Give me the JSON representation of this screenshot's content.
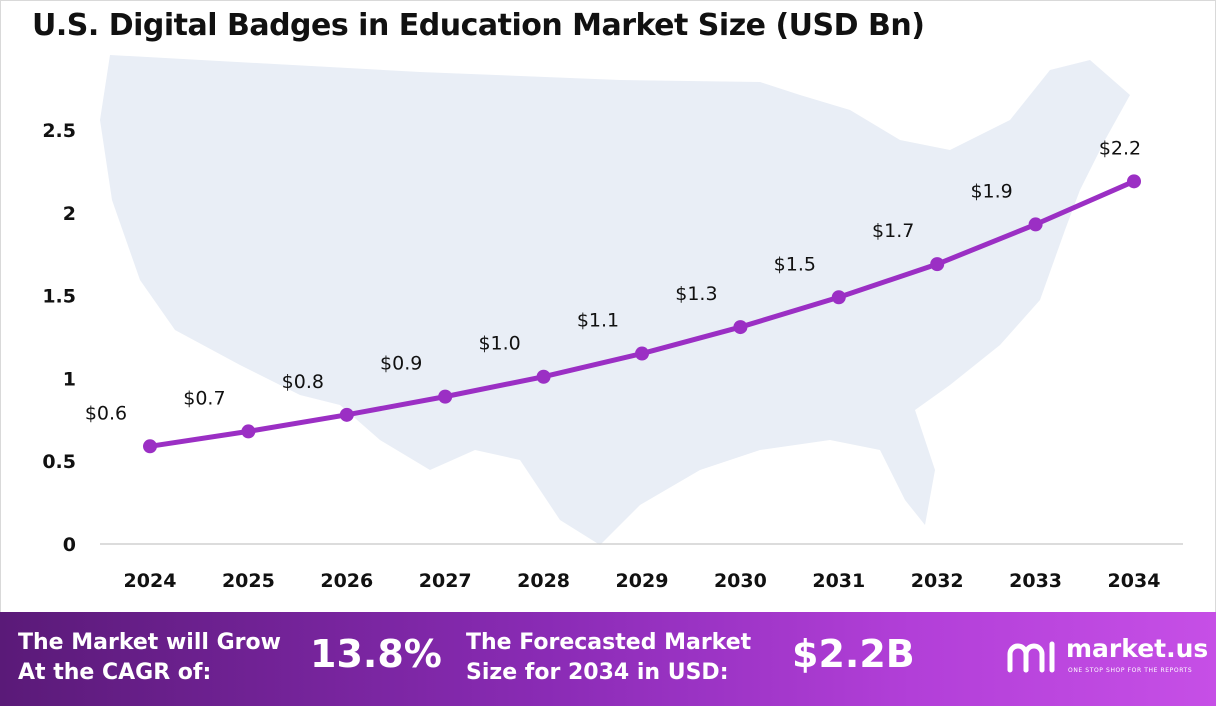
{
  "title": "U.S. Digital Badges in Education Market Size (USD Bn)",
  "chart_data": {
    "type": "line",
    "title": "U.S. Digital Badges in Education Market Size (USD Bn)",
    "categories": [
      "2024",
      "2025",
      "2026",
      "2027",
      "2028",
      "2029",
      "2030",
      "2031",
      "2032",
      "2033",
      "2034"
    ],
    "values": [
      0.59,
      0.68,
      0.78,
      0.89,
      1.01,
      1.15,
      1.31,
      1.49,
      1.69,
      1.93,
      2.19
    ],
    "data_labels": [
      "$0.6",
      "$0.7",
      "$0.8",
      "$0.9",
      "$1.0",
      "$1.1",
      "$1.3",
      "$1.5",
      "$1.7",
      "$1.9",
      "$2.2"
    ],
    "y_ticks": [
      0,
      0.5,
      1,
      1.5,
      2,
      2.5
    ],
    "y_tick_labels": [
      "0",
      "0.5",
      "1",
      "1.5",
      "2",
      "2.5"
    ],
    "ylim": [
      0,
      2.75
    ],
    "grid": false,
    "series_color": "#9b2fc4"
  },
  "footer": {
    "cagr_line1": "The Market will Grow",
    "cagr_line2": "At the CAGR of:",
    "cagr_value": "13.8%",
    "forecast_line1": "The Forecasted Market",
    "forecast_line2": "Size for 2034 in USD:",
    "forecast_value": "$2.2B",
    "logo_name": "market.us",
    "logo_tagline": "ONE STOP SHOP FOR THE REPORTS"
  }
}
